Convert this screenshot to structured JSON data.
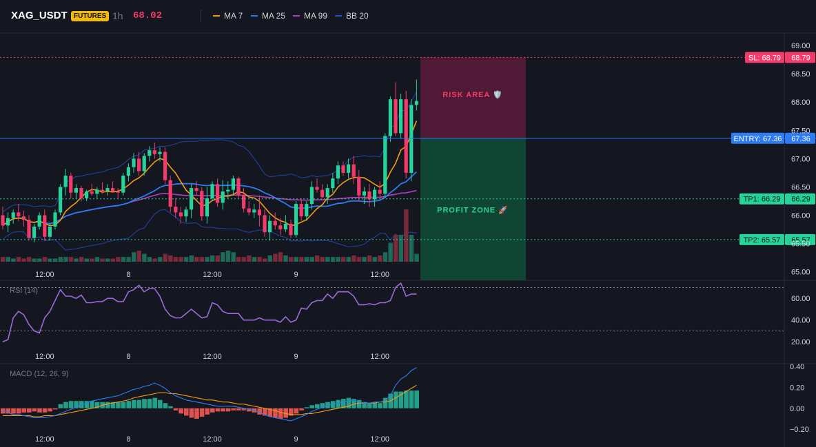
{
  "header": {
    "symbol": "XAG_USDT",
    "badge": "FUTURES",
    "interval": "1h",
    "last_price": "68.02",
    "indicators": [
      {
        "name": "MA 7",
        "color": "#f39c12"
      },
      {
        "name": "MA 25",
        "color": "#2d7cf6"
      },
      {
        "name": "MA 99",
        "color": "#b13fbe"
      },
      {
        "name": "BB 20",
        "color": "#2a4dd1"
      }
    ]
  },
  "colors": {
    "up": "#26d39a",
    "down": "#f23b6b",
    "ma7": "#f39c12",
    "ma25": "#2d7cf6",
    "ma99": "#b13fbe",
    "bb": "#2a4dd1"
  },
  "chart_data": [
    {
      "type": "candlestick",
      "title": "XAG_USDT",
      "x_tick_labels": [
        "12:00",
        "8",
        "12:00",
        "9",
        "12:00"
      ],
      "y_ticks": [
        "69.00",
        "68.50",
        "68.00",
        "67.50",
        "67.00",
        "66.50",
        "66.00",
        "65.50",
        "65.00"
      ],
      "ylim": [
        64.85,
        69.22
      ],
      "levels": [
        {
          "name": "SL",
          "label": "SL: 68.79",
          "axis_label": "68.79",
          "value": 68.79
        },
        {
          "name": "ENTRY",
          "label": "ENTRY: 67.36",
          "axis_label": "67.36",
          "value": 67.36
        },
        {
          "name": "TP1",
          "label": "TP1: 66.29",
          "axis_label": "66.29",
          "value": 66.29
        },
        {
          "name": "TP2",
          "label": "TP2: 65.57",
          "axis_label": "65.57",
          "value": 65.57
        }
      ],
      "zones": [
        {
          "label": "RISK AREA 🛡️",
          "from": 67.36,
          "to": 68.79
        },
        {
          "label": "PROFIT ZONE 🚀",
          "from": 64.8,
          "to": 67.36
        }
      ],
      "ohlc": [
        [
          66.0,
          66.15,
          65.75,
          65.82
        ],
        [
          65.82,
          66.05,
          65.7,
          65.95
        ],
        [
          65.95,
          66.1,
          65.85,
          66.05
        ],
        [
          66.05,
          66.2,
          65.9,
          65.98
        ],
        [
          65.98,
          66.08,
          65.8,
          65.92
        ],
        [
          65.92,
          66.0,
          65.55,
          65.6
        ],
        [
          65.6,
          65.85,
          65.52,
          65.8
        ],
        [
          65.8,
          66.05,
          65.75,
          66.0
        ],
        [
          66.0,
          66.1,
          65.55,
          65.62
        ],
        [
          65.62,
          65.85,
          65.55,
          65.8
        ],
        [
          65.8,
          66.1,
          65.75,
          66.05
        ],
        [
          66.05,
          66.55,
          66.0,
          66.5
        ],
        [
          66.5,
          66.82,
          66.35,
          66.7
        ],
        [
          66.7,
          66.75,
          66.3,
          66.4
        ],
        [
          66.4,
          66.55,
          66.3,
          66.48
        ],
        [
          66.48,
          66.52,
          66.25,
          66.3
        ],
        [
          66.3,
          66.45,
          66.25,
          66.42
        ],
        [
          66.42,
          66.55,
          66.35,
          66.38
        ],
        [
          66.38,
          66.5,
          66.3,
          66.45
        ],
        [
          66.45,
          66.58,
          66.38,
          66.43
        ],
        [
          66.43,
          66.55,
          66.35,
          66.48
        ],
        [
          66.48,
          66.6,
          66.4,
          66.42
        ],
        [
          66.42,
          66.48,
          66.3,
          66.4
        ],
        [
          66.4,
          66.75,
          66.35,
          66.7
        ],
        [
          66.7,
          66.92,
          66.6,
          66.85
        ],
        [
          66.85,
          67.1,
          66.75,
          67.0
        ],
        [
          67.0,
          67.12,
          66.7,
          66.78
        ],
        [
          66.78,
          67.1,
          66.7,
          67.05
        ],
        [
          67.05,
          67.22,
          66.95,
          67.15
        ],
        [
          67.15,
          67.28,
          67.0,
          67.08
        ],
        [
          67.08,
          67.2,
          66.95,
          67.12
        ],
        [
          67.12,
          67.2,
          66.55,
          66.62
        ],
        [
          66.62,
          66.7,
          66.05,
          66.15
        ],
        [
          66.15,
          66.3,
          65.95,
          66.05
        ],
        [
          66.05,
          66.15,
          65.85,
          65.98
        ],
        [
          65.98,
          66.15,
          65.88,
          66.1
        ],
        [
          66.1,
          66.55,
          65.95,
          66.48
        ],
        [
          66.48,
          66.6,
          66.35,
          66.43
        ],
        [
          66.43,
          66.5,
          65.9,
          65.98
        ],
        [
          65.98,
          66.5,
          65.85,
          66.3
        ],
        [
          66.3,
          66.6,
          66.25,
          66.55
        ],
        [
          66.55,
          66.65,
          66.15,
          66.22
        ],
        [
          66.22,
          66.62,
          66.1,
          66.42
        ],
        [
          66.42,
          66.6,
          66.3,
          66.45
        ],
        [
          66.45,
          66.7,
          66.35,
          66.65
        ],
        [
          66.65,
          66.68,
          66.3,
          66.35
        ],
        [
          66.35,
          66.48,
          66.05,
          66.12
        ],
        [
          66.12,
          66.25,
          66.0,
          66.05
        ],
        [
          66.05,
          66.2,
          65.95,
          66.1
        ],
        [
          66.1,
          66.35,
          65.8,
          66.0
        ],
        [
          66.0,
          66.1,
          65.62,
          65.7
        ],
        [
          65.7,
          66.0,
          65.55,
          65.9
        ],
        [
          65.9,
          66.05,
          65.75,
          65.82
        ],
        [
          65.82,
          65.95,
          65.65,
          65.75
        ],
        [
          65.75,
          66.0,
          65.7,
          65.85
        ],
        [
          65.85,
          65.92,
          65.6,
          65.65
        ],
        [
          65.65,
          66.25,
          65.6,
          66.2
        ],
        [
          66.2,
          66.3,
          65.9,
          65.98
        ],
        [
          65.98,
          66.25,
          65.9,
          66.2
        ],
        [
          66.2,
          66.6,
          66.1,
          66.5
        ],
        [
          66.5,
          66.65,
          66.4,
          66.45
        ],
        [
          66.45,
          66.55,
          66.3,
          66.32
        ],
        [
          66.32,
          66.55,
          66.2,
          66.48
        ],
        [
          66.48,
          66.75,
          66.4,
          66.65
        ],
        [
          66.65,
          66.95,
          66.55,
          66.88
        ],
        [
          66.88,
          66.95,
          66.7,
          66.75
        ],
        [
          66.75,
          67.0,
          66.65,
          66.9
        ],
        [
          66.9,
          67.05,
          66.55,
          66.68
        ],
        [
          66.68,
          66.8,
          66.25,
          66.35
        ],
        [
          66.35,
          66.5,
          66.2,
          66.42
        ],
        [
          66.42,
          66.55,
          66.15,
          66.28
        ],
        [
          66.28,
          66.5,
          66.15,
          66.45
        ],
        [
          66.45,
          66.6,
          66.3,
          66.38
        ],
        [
          66.38,
          67.45,
          66.3,
          67.4
        ],
        [
          67.4,
          68.1,
          67.3,
          68.05
        ],
        [
          68.05,
          68.35,
          67.4,
          67.45
        ],
        [
          67.45,
          68.15,
          67.35,
          68.05
        ],
        [
          68.05,
          68.2,
          66.65,
          66.75
        ],
        [
          66.75,
          68.05,
          66.6,
          67.95
        ],
        [
          67.95,
          68.4,
          67.85,
          68.02
        ]
      ],
      "volume": [
        3,
        3,
        2,
        3,
        2,
        3,
        2,
        2,
        3,
        2,
        2,
        3,
        3,
        3,
        2,
        3,
        2,
        2,
        3,
        2,
        2,
        2,
        3,
        3,
        3,
        6,
        7,
        5,
        3,
        2,
        3,
        5,
        4,
        3,
        3,
        3,
        4,
        3,
        3,
        3,
        4,
        4,
        6,
        7,
        6,
        3,
        3,
        4,
        3,
        3,
        2,
        4,
        5,
        6,
        4,
        3,
        3,
        3,
        3,
        3,
        4,
        3,
        3,
        3,
        3,
        3,
        3,
        4,
        3,
        3,
        4,
        3,
        4,
        6,
        12,
        17,
        17,
        33,
        17,
        5
      ]
    },
    {
      "type": "line",
      "title": "RSI (14)",
      "x_tick_labels": [
        "12:00",
        "8",
        "12:00",
        "9",
        "12:00"
      ],
      "y_ticks": [
        "60.00",
        "40.00",
        "20.00"
      ],
      "ylim": [
        15,
        76
      ],
      "bands": [
        70,
        30
      ],
      "series": [
        {
          "name": "RSI (14)",
          "values": [
            20,
            22,
            42,
            48,
            45,
            36,
            30,
            28,
            42,
            48,
            58,
            68,
            62,
            62,
            60,
            63,
            56,
            56,
            57,
            57,
            60,
            60,
            57,
            57,
            66,
            68,
            72,
            66,
            69,
            69,
            62,
            50,
            44,
            42,
            42,
            46,
            50,
            46,
            42,
            43,
            56,
            54,
            48,
            46,
            46,
            46,
            40,
            40,
            40,
            42,
            40,
            40,
            40,
            38,
            43,
            38,
            40,
            51,
            50,
            56,
            58,
            58,
            64,
            60,
            66,
            66,
            66,
            62,
            54,
            54,
            55,
            54,
            56,
            56,
            58,
            70,
            74,
            62,
            64,
            64
          ]
        }
      ]
    },
    {
      "type": "bar+line",
      "title": "MACD (12, 26, 9)",
      "x_tick_labels": [
        "12:00",
        "8",
        "12:00",
        "9",
        "12:00"
      ],
      "y_ticks": [
        "0.40",
        "0.20",
        "0.00",
        "−0.20"
      ],
      "ylim": [
        -0.225,
        0.42
      ],
      "series": [
        {
          "name": "MACD",
          "values": [
            -0.02,
            -0.04,
            -0.06,
            -0.06,
            -0.07,
            -0.08,
            -0.09,
            -0.09,
            -0.09,
            -0.08,
            -0.07,
            -0.05,
            -0.03,
            -0.01,
            0.01,
            0.03,
            0.05,
            0.07,
            0.08,
            0.09,
            0.1,
            0.11,
            0.12,
            0.14,
            0.16,
            0.18,
            0.19,
            0.21,
            0.22,
            0.24,
            0.22,
            0.19,
            0.15,
            0.12,
            0.1,
            0.08,
            0.07,
            0.06,
            0.05,
            0.04,
            0.03,
            0.02,
            0.02,
            0.02,
            0.02,
            0.01,
            0.0,
            -0.01,
            -0.02,
            -0.04,
            -0.06,
            -0.08,
            -0.09,
            -0.1,
            -0.11,
            -0.12,
            -0.1,
            -0.08,
            -0.06,
            -0.03,
            -0.01,
            0.01,
            0.03,
            0.04,
            0.05,
            0.06,
            0.07,
            0.08,
            0.06,
            0.05,
            0.05,
            0.06,
            0.06,
            0.07,
            0.12,
            0.22,
            0.28,
            0.31,
            0.36,
            0.39
          ]
        },
        {
          "name": "Signal",
          "values": [
            -0.07,
            -0.07,
            -0.07,
            -0.07,
            -0.07,
            -0.07,
            -0.08,
            -0.08,
            -0.07,
            -0.07,
            -0.07,
            -0.06,
            -0.05,
            -0.04,
            -0.03,
            -0.02,
            -0.01,
            0.0,
            0.01,
            0.03,
            0.04,
            0.05,
            0.06,
            0.07,
            0.08,
            0.1,
            0.11,
            0.12,
            0.13,
            0.14,
            0.15,
            0.15,
            0.14,
            0.14,
            0.13,
            0.12,
            0.11,
            0.1,
            0.09,
            0.08,
            0.08,
            0.07,
            0.06,
            0.06,
            0.05,
            0.04,
            0.04,
            0.03,
            0.02,
            0.01,
            0.0,
            -0.01,
            -0.02,
            -0.04,
            -0.05,
            -0.06,
            -0.06,
            -0.06,
            -0.05,
            -0.05,
            -0.04,
            -0.03,
            -0.02,
            -0.01,
            0.0,
            0.01,
            0.02,
            0.04,
            0.05,
            0.05,
            0.05,
            0.05,
            0.06,
            0.06,
            0.07,
            0.1,
            0.13,
            0.16,
            0.19,
            0.22
          ]
        },
        {
          "name": "Histogram",
          "values": [
            -0.05,
            -0.05,
            -0.05,
            -0.05,
            -0.04,
            -0.04,
            -0.03,
            -0.04,
            -0.04,
            -0.03,
            -0.01,
            0.04,
            0.06,
            0.07,
            0.07,
            0.07,
            0.07,
            0.07,
            0.06,
            0.06,
            0.06,
            0.06,
            0.06,
            0.06,
            0.07,
            0.08,
            0.08,
            0.09,
            0.09,
            0.1,
            0.08,
            0.05,
            0.02,
            -0.02,
            -0.05,
            -0.07,
            -0.09,
            -0.1,
            -0.08,
            -0.06,
            -0.04,
            -0.03,
            -0.03,
            -0.03,
            -0.02,
            -0.02,
            -0.02,
            -0.03,
            -0.04,
            -0.06,
            -0.07,
            -0.08,
            -0.09,
            -0.1,
            -0.09,
            -0.07,
            -0.05,
            -0.02,
            0.01,
            0.03,
            0.04,
            0.05,
            0.06,
            0.07,
            0.08,
            0.09,
            0.1,
            0.09,
            0.08,
            0.06,
            0.05,
            0.05,
            0.05,
            0.1,
            0.14,
            0.16,
            0.16,
            0.17,
            0.17,
            0.17
          ]
        }
      ]
    }
  ]
}
